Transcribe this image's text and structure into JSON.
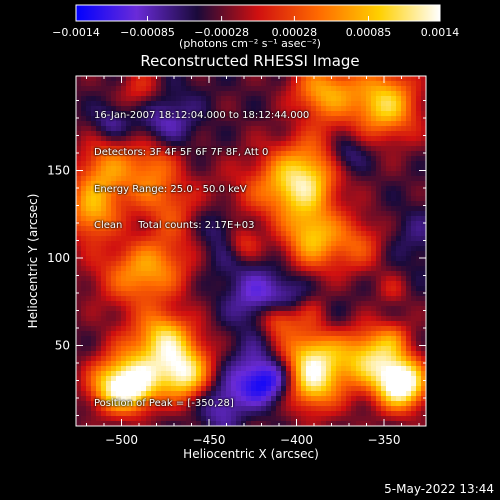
{
  "chart_data": {
    "type": "heatmap",
    "title": "Reconstructed RHESSI Image",
    "xlabel": "Heliocentric X (arcsec)",
    "ylabel": "Heliocentric Y (arcsec)",
    "xlim": [
      -526,
      -326
    ],
    "ylim": [
      4,
      204
    ],
    "x_ticks": [
      -500,
      -450,
      -400,
      -350
    ],
    "x_tick_labels": [
      "−500",
      "−450",
      "−400",
      "−350"
    ],
    "y_ticks": [
      50,
      100,
      150
    ],
    "y_tick_labels": [
      "50",
      "100",
      "150"
    ],
    "colorbar": {
      "min": -0.0014,
      "max": 0.0014,
      "ticks": [
        -0.0014,
        -0.00085,
        -0.00028,
        0.00028,
        0.00085,
        0.0014
      ],
      "tick_labels": [
        "−0.0014",
        "−0.00085",
        "−0.00028",
        "0.00028",
        "0.00085",
        "0.0014"
      ],
      "label": "(photons cm⁻² s⁻¹ asec⁻²)",
      "colormap": [
        "#0000ff",
        "#6a2bd8",
        "#1a0a3a",
        "#d01010",
        "#ff6a00",
        "#ffd000",
        "#ffffff"
      ]
    },
    "peak_position": [
      -350,
      28
    ],
    "grid": false
  },
  "info_lines": [
    "16-Jan-2007 18:12:04.000 to 18:12:44.000",
    "Detectors: 3F 4F 5F 6F 7F 8F, Att 0",
    "Energy Range: 25.0 - 50.0 keV",
    "Clean     Total counts: 2.17E+03"
  ],
  "peak_text": "Position of Peak = [-350,28]",
  "timestamp": "5-May-2022 13:44"
}
